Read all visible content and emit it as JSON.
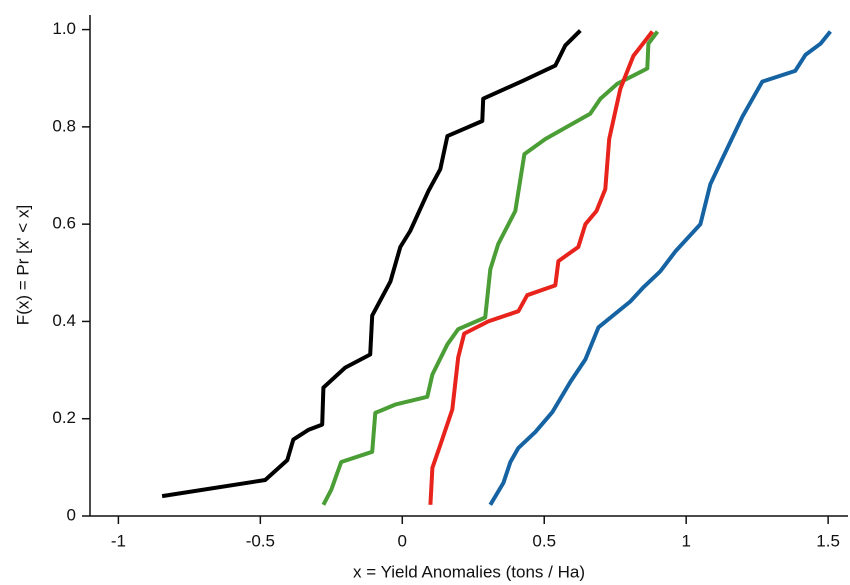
{
  "chart_data": {
    "type": "line",
    "xlabel": "x = Yield Anomalies (tons / Ha)",
    "ylabel": "F(x) = Pr [x' < x]",
    "xlim": [
      -1.1,
      1.57
    ],
    "ylim": [
      0,
      1.03
    ],
    "xticks": [
      -1,
      -0.5,
      0,
      0.5,
      1,
      1.5
    ],
    "yticks": [
      0,
      0.2,
      0.4,
      0.6,
      0.8,
      {
        "value": 1,
        "label": "1.0"
      }
    ],
    "series": [
      {
        "color": "#000000",
        "x": [
          -0.846,
          -0.483,
          -0.405,
          -0.384,
          -0.331,
          -0.282,
          -0.278,
          -0.201,
          -0.113,
          -0.106,
          -0.042,
          -0.007,
          0.028,
          0.092,
          0.134,
          0.159,
          0.282,
          0.285,
          0.426,
          0.539,
          0.574,
          0.627
        ],
        "values": [
          0.041,
          0.074,
          0.115,
          0.157,
          0.177,
          0.188,
          0.264,
          0.305,
          0.332,
          0.412,
          0.482,
          0.553,
          0.586,
          0.668,
          0.713,
          0.781,
          0.812,
          0.858,
          0.895,
          0.926,
          0.967,
          0.998
        ]
      },
      {
        "color": "#4a9e35",
        "x": [
          -0.278,
          -0.25,
          -0.215,
          -0.106,
          -0.095,
          -0.025,
          0.088,
          0.106,
          0.159,
          0.197,
          0.292,
          0.31,
          0.338,
          0.398,
          0.43,
          0.504,
          0.662,
          0.698,
          0.758,
          0.863,
          0.867,
          0.899
        ],
        "values": [
          0.023,
          0.054,
          0.111,
          0.132,
          0.212,
          0.229,
          0.245,
          0.291,
          0.353,
          0.384,
          0.408,
          0.507,
          0.559,
          0.627,
          0.744,
          0.775,
          0.827,
          0.858,
          0.889,
          0.92,
          0.971,
          0.996
        ]
      },
      {
        "color": "#e8231b",
        "x": [
          0.099,
          0.106,
          0.134,
          0.176,
          0.197,
          0.218,
          0.303,
          0.409,
          0.44,
          0.539,
          0.55,
          0.62,
          0.645,
          0.684,
          0.715,
          0.729,
          0.768,
          0.814,
          0.881
        ],
        "values": [
          0.023,
          0.099,
          0.146,
          0.219,
          0.326,
          0.375,
          0.4,
          0.421,
          0.454,
          0.474,
          0.524,
          0.553,
          0.6,
          0.627,
          0.672,
          0.775,
          0.878,
          0.946,
          0.996
        ]
      },
      {
        "color": "#1663a3",
        "x": [
          0.31,
          0.356,
          0.381,
          0.409,
          0.469,
          0.529,
          0.592,
          0.645,
          0.691,
          0.803,
          0.849,
          0.909,
          0.962,
          1.05,
          1.085,
          1.127,
          1.198,
          1.268,
          1.384,
          1.42,
          1.473,
          1.508
        ],
        "values": [
          0.023,
          0.068,
          0.111,
          0.14,
          0.173,
          0.214,
          0.276,
          0.322,
          0.388,
          0.441,
          0.47,
          0.503,
          0.544,
          0.6,
          0.682,
          0.734,
          0.821,
          0.893,
          0.915,
          0.948,
          0.971,
          0.996
        ]
      }
    ]
  }
}
